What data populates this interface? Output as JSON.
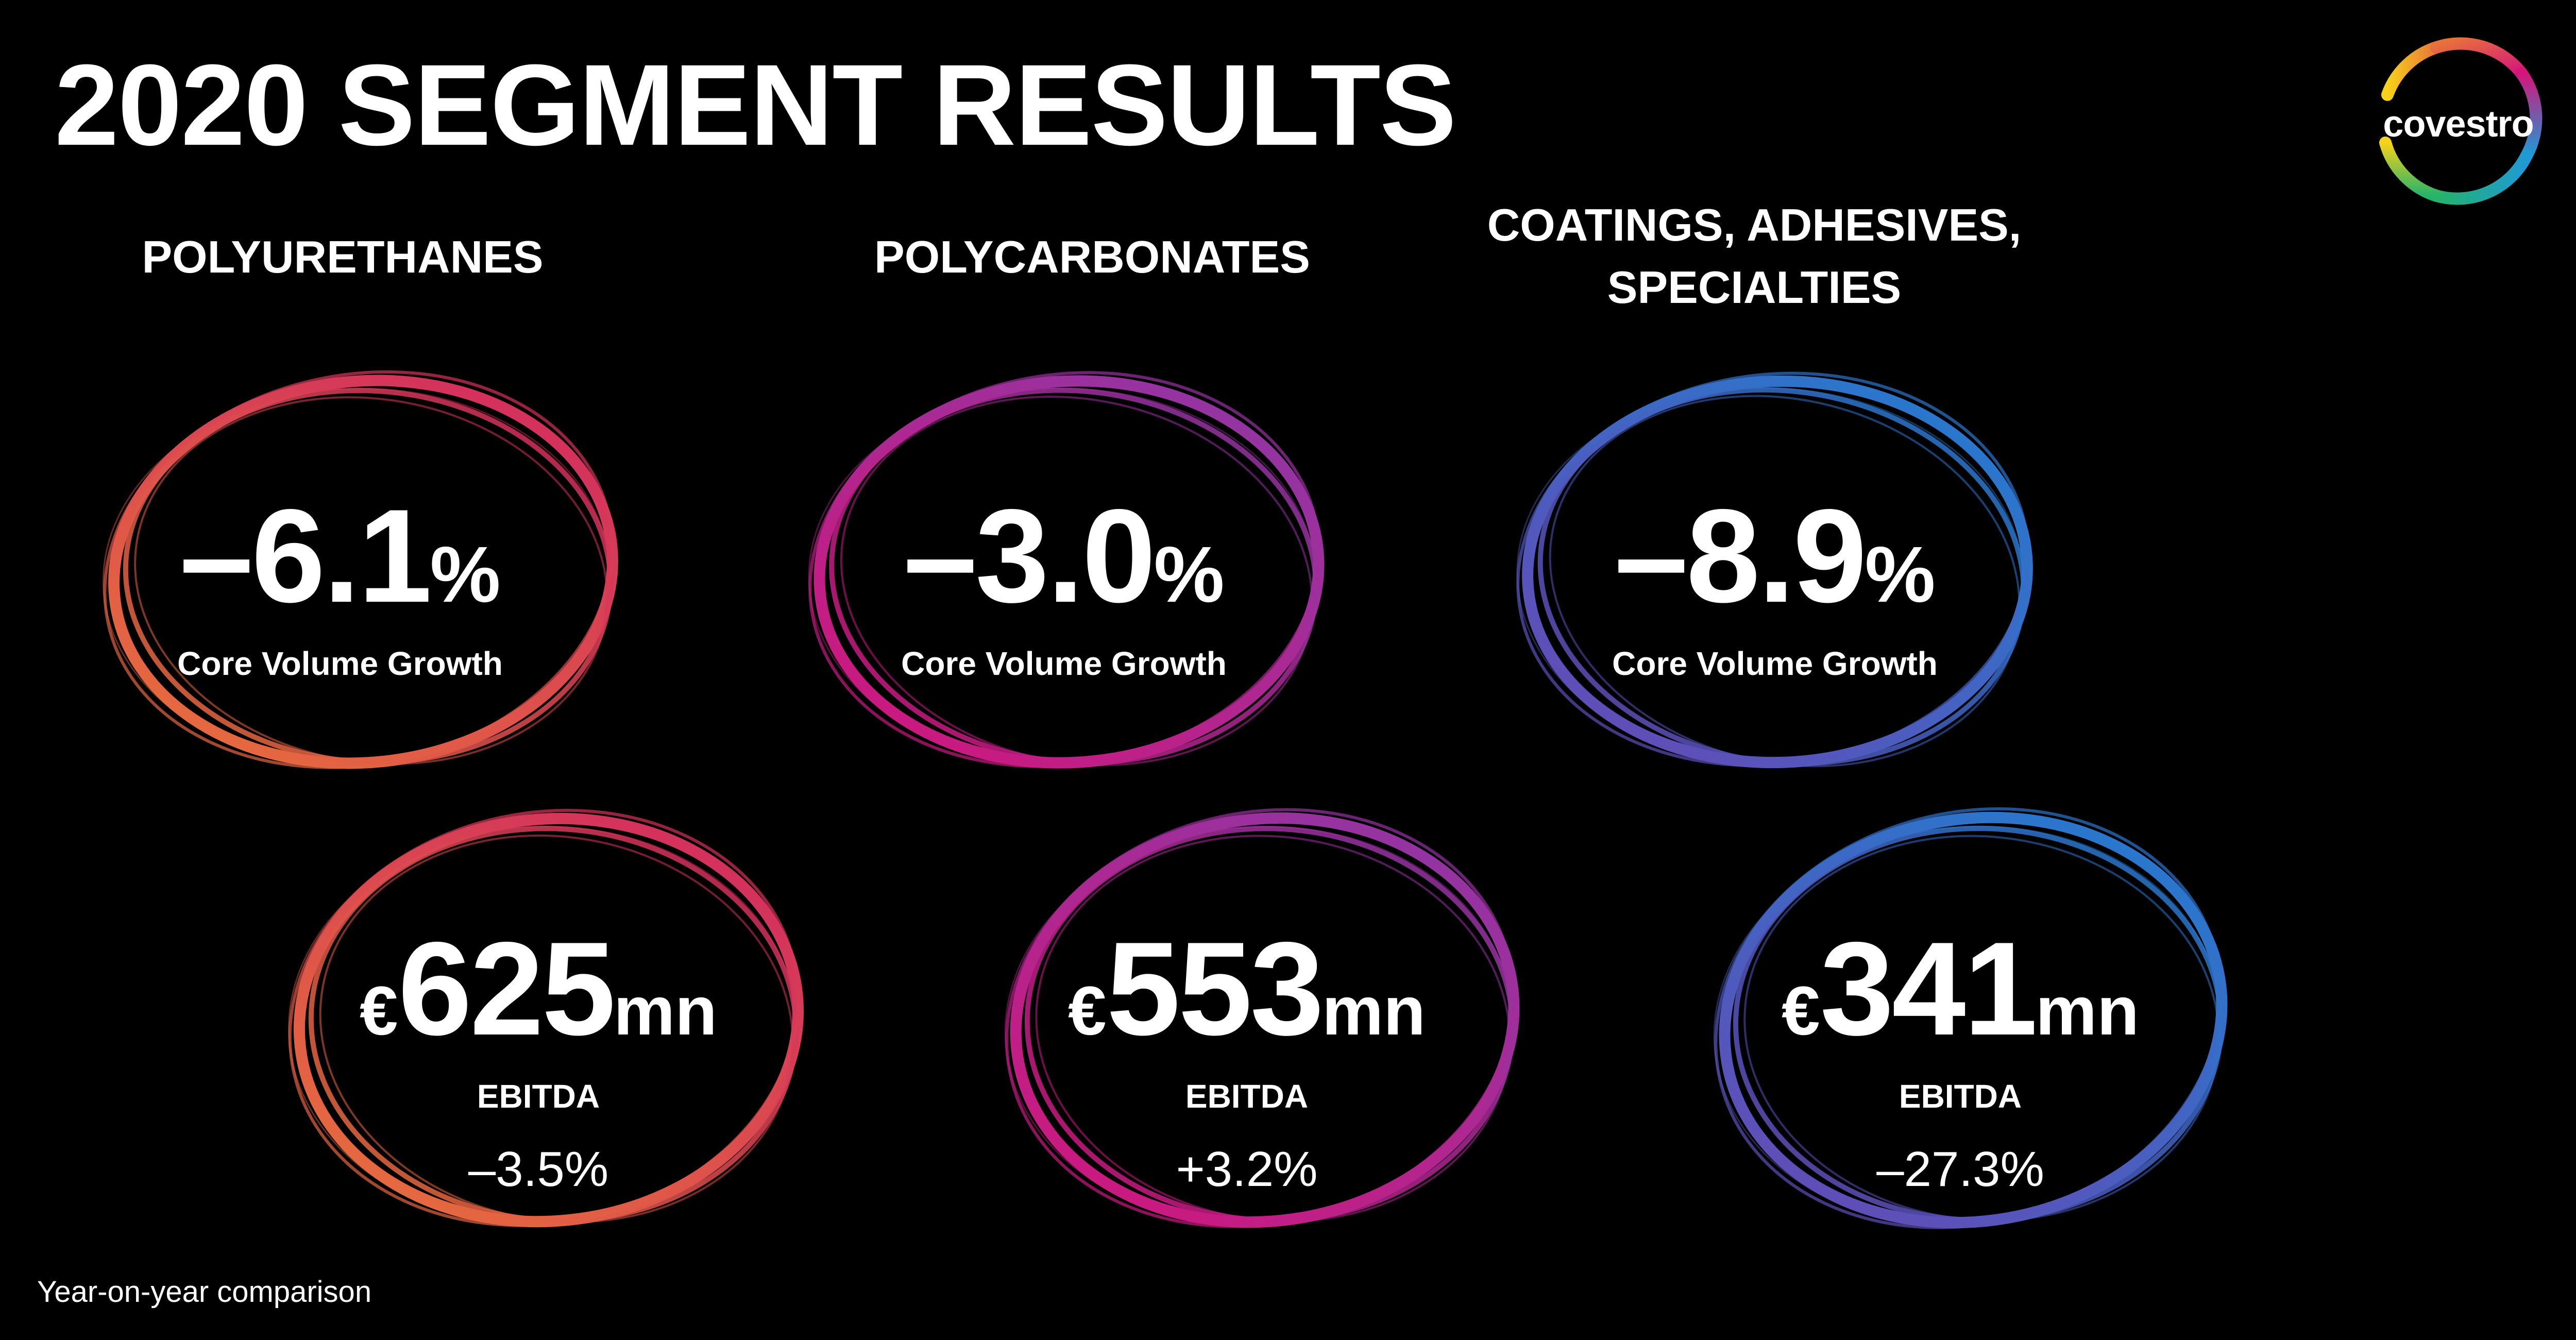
{
  "title": "2020 SEGMENT RESULTS",
  "logo": {
    "text": "covestro"
  },
  "segments": [
    {
      "heading": "POLYURETHANES",
      "core_volume": {
        "value": "–6.1",
        "unit": "%",
        "label": "Core Volume Growth"
      },
      "ebitda": {
        "currency": "€",
        "value": "625",
        "unit": "mn",
        "label": "EBITDA",
        "change": "–3.5%"
      },
      "colors": [
        "#e8733a",
        "#d02662"
      ]
    },
    {
      "heading": "POLYCARBONATES",
      "core_volume": {
        "value": "–3.0",
        "unit": "%",
        "label": "Core Volume Growth"
      },
      "ebitda": {
        "currency": "€",
        "value": "553",
        "unit": "mn",
        "label": "EBITDA",
        "change": "+3.2%"
      },
      "colors": [
        "#d4157a",
        "#8a39a8"
      ]
    },
    {
      "heading": "COATINGS, ADHESIVES, SPECIALTIES",
      "core_volume": {
        "value": "–8.9",
        "unit": "%",
        "label": "Core Volume Growth"
      },
      "ebitda": {
        "currency": "€",
        "value": "341",
        "unit": "mn",
        "label": "EBITDA",
        "change": "–27.3%"
      },
      "colors": [
        "#6a46b3",
        "#1f7fd1"
      ]
    }
  ],
  "footnote": "Year-on-year comparison"
}
